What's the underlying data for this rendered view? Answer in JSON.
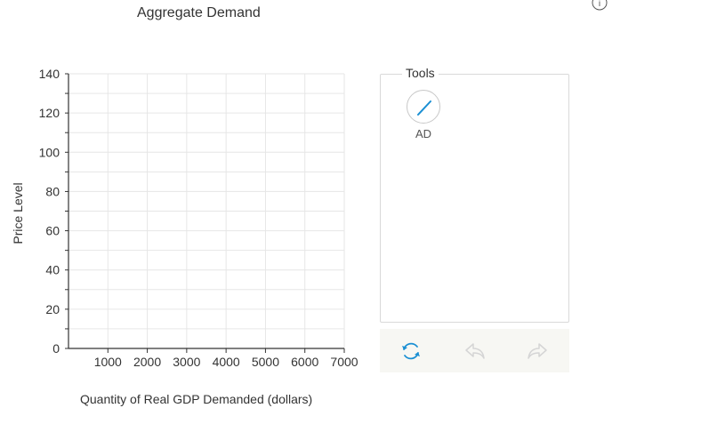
{
  "graph": {
    "title": "Aggregate Demand",
    "info_symbol": "i"
  },
  "chart_data": {
    "type": "line",
    "title": "Aggregate Demand",
    "xlabel": "Quantity of Real GDP Demanded (dollars)",
    "ylabel": "Price Level",
    "xlim": [
      0,
      7000
    ],
    "ylim": [
      0,
      140
    ],
    "x_ticks": [
      "1000",
      "2000",
      "3000",
      "4000",
      "5000",
      "6000",
      "7000"
    ],
    "y_ticks": [
      "0",
      "20",
      "40",
      "60",
      "80",
      "100",
      "120",
      "140"
    ],
    "x_minor_step": 1000,
    "y_minor_step": 10,
    "grid": true,
    "series": []
  },
  "tools": {
    "legend": "Tools",
    "items": [
      {
        "label": "AD",
        "icon": "line-draw-icon"
      }
    ]
  },
  "actions": {
    "reset_icon": "reset-icon",
    "undo_icon": "undo-icon",
    "redo_icon": "redo-icon"
  },
  "colors": {
    "accent": "#1a8fd3",
    "grid": "#e6e6e6",
    "axis": "#333333",
    "disabled": "#d5d5d5",
    "action_bg": "#f7f7f3"
  }
}
